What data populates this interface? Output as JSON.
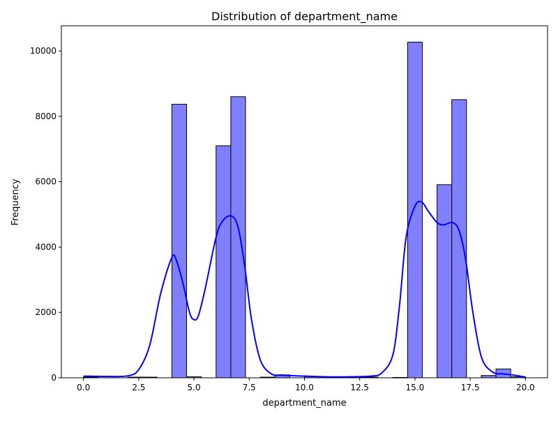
{
  "chart_data": {
    "type": "bar",
    "subtype": "histogram-with-kde",
    "title": "Distribution of department_name",
    "xlabel": "department_name",
    "ylabel": "Frequency",
    "xlim": [
      -1.0,
      21.0
    ],
    "ylim": [
      0,
      10770
    ],
    "xticks": [
      0.0,
      2.5,
      5.0,
      7.5,
      10.0,
      12.5,
      15.0,
      17.5,
      20.0
    ],
    "xtick_labels": [
      "0.0",
      "2.5",
      "5.0",
      "7.5",
      "10.0",
      "12.5",
      "15.0",
      "17.5",
      "20.0"
    ],
    "yticks": [
      0,
      2000,
      4000,
      6000,
      8000,
      10000
    ],
    "ytick_labels": [
      "0",
      "2000",
      "4000",
      "6000",
      "8000",
      "10000"
    ],
    "grid": false,
    "bin_width": 0.6667,
    "bins": [
      {
        "x0": 0.0,
        "x1": 0.6667,
        "value": 20
      },
      {
        "x0": 0.6667,
        "x1": 1.3333,
        "value": 0
      },
      {
        "x0": 1.3333,
        "x1": 2.0,
        "value": 0
      },
      {
        "x0": 2.0,
        "x1": 2.6667,
        "value": 20
      },
      {
        "x0": 2.6667,
        "x1": 3.3333,
        "value": 20
      },
      {
        "x0": 3.3333,
        "x1": 4.0,
        "value": 0
      },
      {
        "x0": 4.0,
        "x1": 4.6667,
        "value": 8370
      },
      {
        "x0": 4.6667,
        "x1": 5.3333,
        "value": 30
      },
      {
        "x0": 5.3333,
        "x1": 6.0,
        "value": 0
      },
      {
        "x0": 6.0,
        "x1": 6.6667,
        "value": 7100
      },
      {
        "x0": 6.6667,
        "x1": 7.3333,
        "value": 8600
      },
      {
        "x0": 7.3333,
        "x1": 8.0,
        "value": 0
      },
      {
        "x0": 8.0,
        "x1": 8.6667,
        "value": 20
      },
      {
        "x0": 8.6667,
        "x1": 9.3333,
        "value": 90
      },
      {
        "x0": 9.3333,
        "x1": 10.0,
        "value": 0
      },
      {
        "x0": 10.0,
        "x1": 10.6667,
        "value": 40
      },
      {
        "x0": 10.6667,
        "x1": 11.3333,
        "value": 0
      },
      {
        "x0": 11.3333,
        "x1": 12.0,
        "value": 0
      },
      {
        "x0": 12.0,
        "x1": 12.6667,
        "value": 20
      },
      {
        "x0": 12.6667,
        "x1": 13.3333,
        "value": 20
      },
      {
        "x0": 13.3333,
        "x1": 14.0,
        "value": 0
      },
      {
        "x0": 14.0,
        "x1": 14.6667,
        "value": 10
      },
      {
        "x0": 14.6667,
        "x1": 15.3333,
        "value": 10270
      },
      {
        "x0": 15.3333,
        "x1": 16.0,
        "value": 0
      },
      {
        "x0": 16.0,
        "x1": 16.6667,
        "value": 5910
      },
      {
        "x0": 16.6667,
        "x1": 17.3333,
        "value": 8510
      },
      {
        "x0": 17.3333,
        "x1": 18.0,
        "value": 0
      },
      {
        "x0": 18.0,
        "x1": 18.6667,
        "value": 70
      },
      {
        "x0": 18.6667,
        "x1": 19.3333,
        "value": 270
      },
      {
        "x0": 19.3333,
        "x1": 20.0,
        "value": 30
      }
    ],
    "kde": {
      "x": [
        0.0,
        1.0,
        2.0,
        2.5,
        3.0,
        3.5,
        4.0,
        4.2,
        4.5,
        4.8,
        5.0,
        5.2,
        5.5,
        6.0,
        6.3,
        6.7,
        7.0,
        7.3,
        7.6,
        8.0,
        8.5,
        9.0,
        10.0,
        11.0,
        12.0,
        13.0,
        13.5,
        14.0,
        14.3,
        14.6,
        15.0,
        15.3,
        15.6,
        16.0,
        16.3,
        16.7,
        17.0,
        17.3,
        17.6,
        18.0,
        18.5,
        19.0,
        19.5,
        20.0
      ],
      "y": [
        50,
        40,
        60,
        250,
        1000,
        2600,
        3680,
        3600,
        2900,
        2000,
        1780,
        1900,
        2700,
        4300,
        4800,
        4950,
        4600,
        3400,
        1800,
        550,
        120,
        80,
        50,
        30,
        30,
        50,
        150,
        700,
        2200,
        4300,
        5250,
        5380,
        5100,
        4750,
        4680,
        4750,
        4500,
        3600,
        2100,
        650,
        180,
        120,
        80,
        20
      ]
    },
    "colors": {
      "bar_fill": "#8080ff",
      "bar_edge": "#000000",
      "kde_line": "#0000ff"
    }
  }
}
